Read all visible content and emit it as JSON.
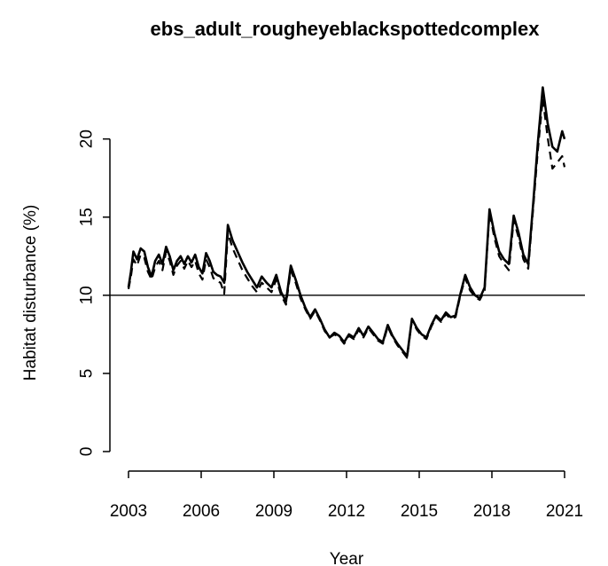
{
  "chart_data": {
    "type": "line",
    "title": "ebs_adult_rougheyeblackspottedcomplex",
    "xlabel": "Year",
    "ylabel": "Habitat disturbance (%)",
    "xlim": [
      2003,
      2021
    ],
    "ylim": [
      0,
      23.5
    ],
    "x_ticks": [
      {
        "value": 2003,
        "label": "2003"
      },
      {
        "value": 2006,
        "label": "2006"
      },
      {
        "value": 2009,
        "label": "2009"
      },
      {
        "value": 2012,
        "label": "2012"
      },
      {
        "value": 2015,
        "label": "2015"
      },
      {
        "value": 2018,
        "label": "2018"
      },
      {
        "value": 2021,
        "label": "2021"
      }
    ],
    "y_ticks": [
      {
        "value": 0,
        "label": "0"
      },
      {
        "value": 5,
        "label": "5"
      },
      {
        "value": 10,
        "label": "10"
      },
      {
        "value": 15,
        "label": "15"
      },
      {
        "value": 20,
        "label": "20"
      }
    ],
    "reference_line": {
      "y": 10
    },
    "colors": {
      "line": "#000000",
      "background": "#ffffff"
    },
    "series": [
      {
        "style": "solid",
        "x": [
          2003.0,
          2003.1,
          2003.2,
          2003.35,
          2003.5,
          2003.65,
          2003.8,
          2003.95,
          2004.1,
          2004.25,
          2004.4,
          2004.55,
          2004.7,
          2004.85,
          2005.0,
          2005.15,
          2005.3,
          2005.45,
          2005.6,
          2005.75,
          2005.9,
          2006.05,
          2006.2,
          2006.35,
          2006.5,
          2006.65,
          2006.8,
          2006.95,
          2007.1,
          2007.3,
          2007.5,
          2007.7,
          2007.9,
          2008.1,
          2008.3,
          2008.5,
          2008.7,
          2008.9,
          2009.1,
          2009.3,
          2009.5,
          2009.7,
          2009.9,
          2010.1,
          2010.3,
          2010.5,
          2010.7,
          2010.9,
          2011.1,
          2011.3,
          2011.5,
          2011.7,
          2011.9,
          2012.1,
          2012.3,
          2012.5,
          2012.7,
          2012.9,
          2013.1,
          2013.3,
          2013.5,
          2013.7,
          2013.9,
          2014.1,
          2014.3,
          2014.5,
          2014.7,
          2014.9,
          2015.1,
          2015.3,
          2015.5,
          2015.7,
          2015.9,
          2016.1,
          2016.3,
          2016.5,
          2016.7,
          2016.9,
          2017.1,
          2017.3,
          2017.5,
          2017.7,
          2017.9,
          2018.1,
          2018.3,
          2018.5,
          2018.7,
          2018.9,
          2019.1,
          2019.3,
          2019.5,
          2019.7,
          2019.9,
          2020.1,
          2020.3,
          2020.5,
          2020.7,
          2020.9,
          2021.0
        ],
        "y": [
          10.5,
          11.5,
          12.8,
          12.3,
          13.0,
          12.8,
          11.8,
          11.2,
          12.2,
          12.6,
          12.0,
          13.1,
          12.5,
          11.6,
          12.2,
          12.5,
          12.0,
          12.5,
          12.1,
          12.6,
          11.8,
          11.4,
          12.7,
          12.2,
          11.5,
          11.3,
          11.2,
          10.8,
          14.5,
          13.5,
          12.8,
          12.1,
          11.5,
          11.0,
          10.5,
          11.2,
          10.8,
          10.5,
          11.3,
          10.2,
          9.6,
          11.9,
          11.0,
          10.0,
          9.2,
          8.6,
          9.1,
          8.5,
          7.8,
          7.3,
          7.6,
          7.4,
          7.0,
          7.5,
          7.3,
          7.9,
          7.4,
          8.0,
          7.6,
          7.2,
          7.0,
          8.1,
          7.4,
          6.9,
          6.5,
          6.1,
          8.5,
          7.9,
          7.5,
          7.3,
          8.1,
          8.7,
          8.4,
          8.9,
          8.6,
          8.7,
          10.1,
          11.3,
          10.5,
          10.0,
          9.8,
          10.5,
          15.5,
          14.0,
          12.8,
          12.3,
          12.0,
          15.1,
          14.0,
          12.6,
          12.0,
          15.8,
          19.8,
          23.3,
          21.0,
          19.5,
          19.2,
          20.5,
          20.0
        ]
      },
      {
        "style": "dashed",
        "x": [
          2003.0,
          2003.1,
          2003.2,
          2003.35,
          2003.5,
          2003.65,
          2003.8,
          2003.95,
          2004.1,
          2004.25,
          2004.4,
          2004.55,
          2004.7,
          2004.85,
          2005.0,
          2005.15,
          2005.3,
          2005.45,
          2005.6,
          2005.75,
          2005.9,
          2006.05,
          2006.2,
          2006.35,
          2006.5,
          2006.65,
          2006.8,
          2006.95,
          2007.1,
          2007.3,
          2007.5,
          2007.7,
          2007.9,
          2008.1,
          2008.3,
          2008.5,
          2008.7,
          2008.9,
          2009.1,
          2009.3,
          2009.5,
          2009.7,
          2009.9,
          2010.1,
          2010.3,
          2010.5,
          2010.7,
          2010.9,
          2011.1,
          2011.3,
          2011.5,
          2011.7,
          2011.9,
          2012.1,
          2012.3,
          2012.5,
          2012.7,
          2012.9,
          2013.1,
          2013.3,
          2013.5,
          2013.7,
          2013.9,
          2014.1,
          2014.3,
          2014.5,
          2014.7,
          2014.9,
          2015.1,
          2015.3,
          2015.5,
          2015.7,
          2015.9,
          2016.1,
          2016.3,
          2016.5,
          2016.7,
          2016.9,
          2017.1,
          2017.3,
          2017.5,
          2017.7,
          2017.9,
          2018.1,
          2018.3,
          2018.5,
          2018.7,
          2018.9,
          2019.1,
          2019.3,
          2019.5,
          2019.7,
          2019.9,
          2020.1,
          2020.3,
          2020.5,
          2020.7,
          2020.9,
          2021.0
        ],
        "y": [
          10.4,
          11.2,
          12.3,
          11.9,
          12.6,
          12.4,
          11.5,
          11.0,
          11.8,
          12.2,
          11.6,
          12.8,
          12.2,
          11.3,
          11.9,
          12.2,
          11.7,
          12.2,
          11.8,
          12.2,
          11.4,
          11.0,
          12.3,
          11.8,
          11.1,
          10.9,
          10.8,
          10.1,
          14.0,
          13.0,
          12.3,
          11.6,
          11.1,
          10.6,
          10.2,
          10.8,
          10.5,
          10.2,
          11.0,
          10.0,
          9.4,
          11.6,
          10.8,
          9.8,
          9.1,
          8.5,
          9.0,
          8.4,
          7.7,
          7.3,
          7.5,
          7.3,
          6.9,
          7.4,
          7.2,
          7.8,
          7.3,
          7.9,
          7.5,
          7.1,
          6.9,
          8.0,
          7.3,
          6.8,
          6.4,
          6.0,
          8.4,
          7.8,
          7.4,
          7.2,
          8.0,
          8.6,
          8.3,
          8.8,
          8.5,
          8.6,
          10.0,
          11.1,
          10.3,
          9.9,
          9.7,
          10.3,
          15.3,
          13.7,
          12.5,
          12.0,
          11.6,
          14.8,
          13.7,
          12.3,
          11.7,
          15.5,
          19.3,
          22.6,
          20.1,
          18.1,
          18.5,
          18.9,
          18.2
        ]
      }
    ]
  }
}
